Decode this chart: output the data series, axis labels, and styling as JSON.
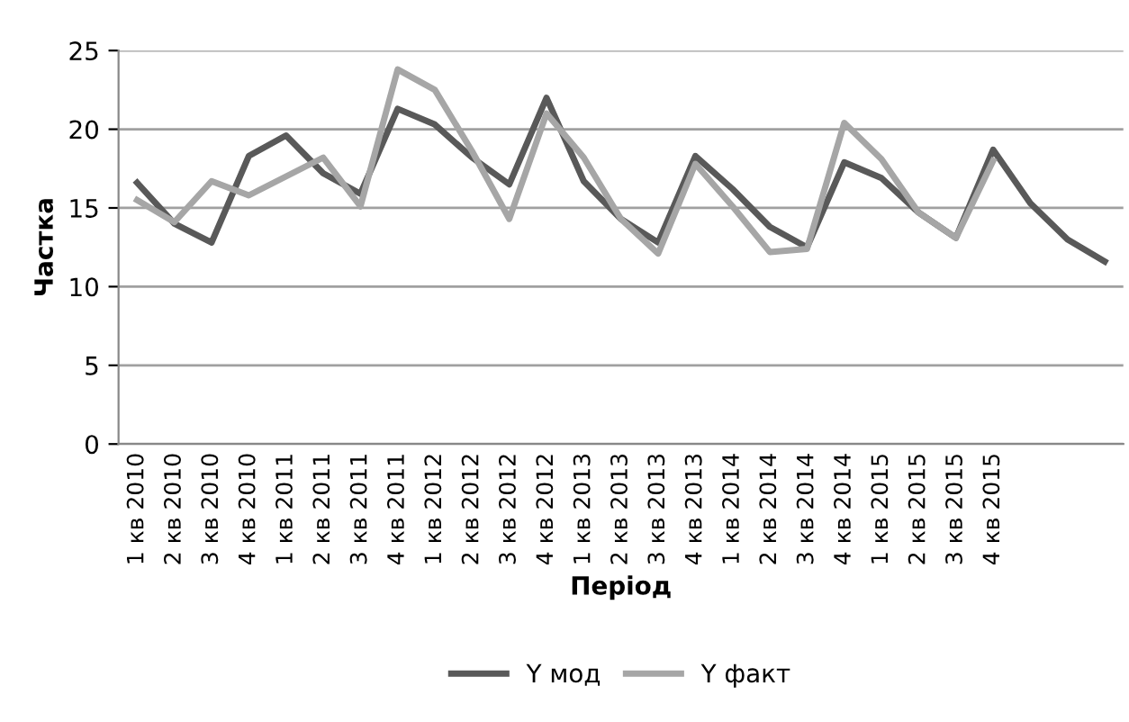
{
  "chart_data": {
    "type": "line",
    "xlabel": "Період",
    "ylabel": "Частка",
    "categories": [
      "1 кв 2010",
      "2 кв 2010",
      "3 кв 2010",
      "4 кв 2010",
      "1 кв 2011",
      "2 кв 2011",
      "3 кв 2011",
      "4 кв 2011",
      "1 кв 2012",
      "2 кв 2012",
      "3 кв 2012",
      "4 кв 2012",
      "1 кв 2013",
      "2 кв 2013",
      "3 кв 2013",
      "4 кв 2013",
      "1 кв 2014",
      "2 кв 2014",
      "3 кв 2014",
      "4 кв 2014",
      "1 кв 2015",
      "2 кв 2015",
      "3 кв 2015",
      "4 кв 2015",
      null,
      null,
      null
    ],
    "series": [
      {
        "name": "Y мод",
        "color": "#595959",
        "values": [
          16.6,
          14.0,
          12.8,
          18.3,
          19.6,
          17.2,
          15.9,
          21.3,
          20.3,
          18.2,
          16.5,
          22.0,
          16.7,
          14.3,
          12.8,
          18.3,
          16.2,
          13.8,
          12.5,
          17.9,
          16.9,
          14.7,
          13.1,
          18.7,
          15.3,
          13.0,
          11.6
        ]
      },
      {
        "name": "Y факт",
        "color": "#a6a6a6",
        "values": [
          15.5,
          14.1,
          16.7,
          15.8,
          17.0,
          18.2,
          15.1,
          23.8,
          22.5,
          18.6,
          14.3,
          21.0,
          18.2,
          14.3,
          12.1,
          17.8,
          15.1,
          12.2,
          12.4,
          20.4,
          18.1,
          14.7,
          13.1,
          18.0,
          null,
          null,
          null
        ]
      }
    ],
    "ylim": [
      0,
      25
    ],
    "yticks": [
      0,
      5,
      10,
      15,
      20,
      25
    ],
    "grid": "y",
    "legend": "bottom",
    "marker": "none",
    "line_style": "solid"
  }
}
